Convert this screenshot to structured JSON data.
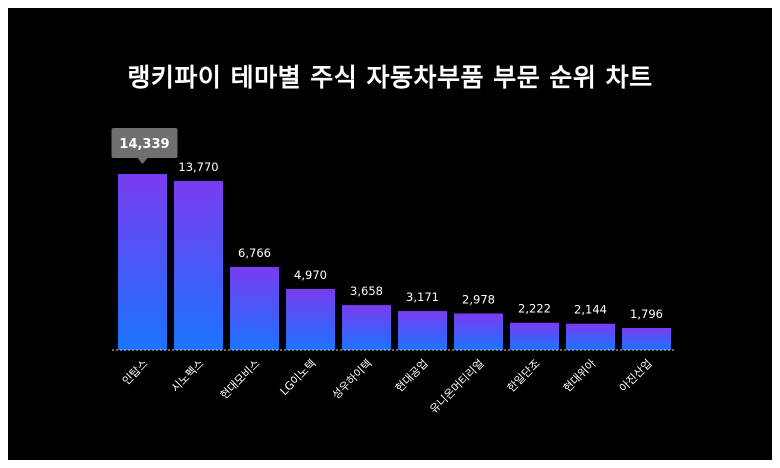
{
  "page": {
    "background": "#000000"
  },
  "chart_data": {
    "type": "bar",
    "title": "랭키파이 테마별 주식 자동차부품 부문 순위 차트",
    "categories": [
      "인탑스",
      "시노펙스",
      "현대모비스",
      "LG이노텍",
      "성우하이텍",
      "현대공업",
      "유니온머티리얼",
      "한일단조",
      "현대위아",
      "아진산업"
    ],
    "values": [
      14339,
      13770,
      6766,
      4970,
      3658,
      3171,
      2978,
      2222,
      2144,
      1796
    ],
    "value_labels": [
      "14,339",
      "13,770",
      "6,766",
      "4,970",
      "3,658",
      "3,171",
      "2,978",
      "2,222",
      "2,144",
      "1,796"
    ],
    "highlight": {
      "index": 0,
      "label": "14,339"
    },
    "ylim": [
      0,
      14339
    ],
    "grid": false,
    "legend": "none",
    "colors": {
      "bar_top": "#7a3cf0",
      "bar_bottom": "#1a74ff",
      "callout": "#6f6f6f",
      "baseline": "#d8d8d8"
    }
  }
}
